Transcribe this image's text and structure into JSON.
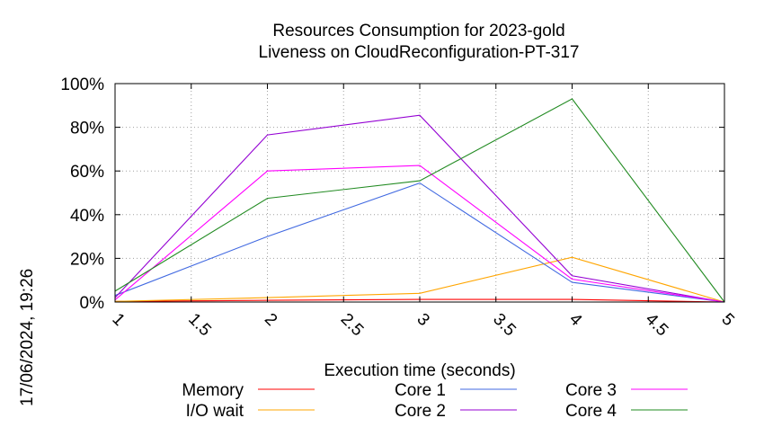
{
  "chart_data": {
    "type": "line",
    "title": "Resources Consumption for 2023-gold",
    "subtitle": "Liveness on CloudReconfiguration-PT-317",
    "xlabel": "Execution time (seconds)",
    "ylabel": "",
    "timestamp": "17/06/2024, 19:26",
    "xlim": [
      1,
      5
    ],
    "ylim": [
      0,
      100
    ],
    "x_ticks": [
      "1",
      "1.5",
      "2",
      "2.5",
      "3",
      "3.5",
      "4",
      "4.5",
      "5"
    ],
    "y_ticks": [
      "0%",
      "20%",
      "40%",
      "60%",
      "80%",
      "100%"
    ],
    "grid": true,
    "legend_position": "bottom",
    "series": [
      {
        "name": "Memory",
        "color": "#ff0000",
        "x": [
          1,
          2,
          3,
          4,
          5
        ],
        "values": [
          0.3,
          0.8,
          1.2,
          1.2,
          0
        ]
      },
      {
        "name": "I/O wait",
        "color": "#ffa500",
        "x": [
          1,
          2,
          3,
          4,
          5
        ],
        "values": [
          0.3,
          2.0,
          4.0,
          20.5,
          0
        ]
      },
      {
        "name": "Core 1",
        "color": "#4169e1",
        "x": [
          1,
          2,
          3,
          4,
          5
        ],
        "values": [
          3.0,
          30.0,
          54.5,
          9.0,
          0
        ]
      },
      {
        "name": "Core 2",
        "color": "#9400d3",
        "x": [
          1,
          2,
          3,
          4,
          5
        ],
        "values": [
          2.0,
          76.5,
          85.5,
          12.0,
          0
        ]
      },
      {
        "name": "Core 3",
        "color": "#ff00ff",
        "x": [
          1,
          2,
          3,
          4,
          5
        ],
        "values": [
          1.0,
          60.0,
          62.5,
          10.5,
          0
        ]
      },
      {
        "name": "Core 4",
        "color": "#228b22",
        "x": [
          1,
          2,
          3,
          4,
          5
        ],
        "values": [
          5.0,
          47.5,
          55.5,
          93.0,
          0
        ]
      }
    ]
  }
}
